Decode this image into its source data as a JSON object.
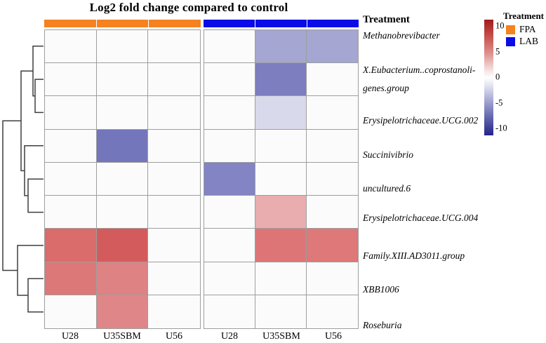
{
  "chart_data": {
    "type": "heatmap",
    "title": "Log2 fold change compared to control",
    "annotation_label": "Treatment",
    "columns": [
      "U28",
      "U35SBM",
      "U56",
      "U28",
      "U35SBM",
      "U56"
    ],
    "column_groups": [
      {
        "name": "FPA",
        "columns": [
          0,
          1,
          2
        ],
        "color": "#F58220"
      },
      {
        "name": "LAB",
        "columns": [
          3,
          4,
          5
        ],
        "color": "#0B0BE8"
      }
    ],
    "rows": [
      "Methanobrevibacter",
      "X.Eubacterium..coprostanoli-\ngenes.group",
      "Erysipelotrichaceae.UCG.002",
      "Succinivibrio",
      "uncultured.6",
      "Erysipelotrichaceae.UCG.004",
      "Family.XIII.AD3011.group",
      "XBB1006",
      "Roseburia"
    ],
    "value_range": [
      -10,
      10
    ],
    "values": [
      [
        0,
        0,
        0,
        0,
        -4,
        -4
      ],
      [
        0,
        0,
        0,
        0,
        -6,
        0
      ],
      [
        0,
        0,
        0,
        0,
        -2,
        0
      ],
      [
        0,
        -6.5,
        0,
        0,
        0,
        0
      ],
      [
        0,
        0,
        0,
        -6,
        0,
        0
      ],
      [
        0,
        0,
        0,
        0,
        3.5,
        0
      ],
      [
        6.5,
        7,
        0,
        0,
        6,
        6
      ],
      [
        6,
        5.5,
        0,
        0,
        0,
        0
      ],
      [
        0,
        5.3,
        0,
        0,
        0,
        0
      ]
    ],
    "na_color": "#FBFBFB",
    "cell_colors": [
      [
        "#FBFBFB",
        "#FBFBFB",
        "#FBFBFB",
        "#FBFBFB",
        "#A5A6D2",
        "#A5A6D2"
      ],
      [
        "#FBFBFB",
        "#FBFBFB",
        "#FBFBFB",
        "#FBFBFB",
        "#7C7EC0",
        "#FBFBFB"
      ],
      [
        "#FBFBFB",
        "#FBFBFB",
        "#FBFBFB",
        "#FBFBFB",
        "#D9D9EC",
        "#FBFBFB"
      ],
      [
        "#FBFBFB",
        "#7476BC",
        "#FBFBFB",
        "#FBFBFB",
        "#FBFBFB",
        "#FBFBFB"
      ],
      [
        "#FBFBFB",
        "#FBFBFB",
        "#FBFBFB",
        "#8284C4",
        "#FBFBFB",
        "#FBFBFB"
      ],
      [
        "#FBFBFB",
        "#FBFBFB",
        "#FBFBFB",
        "#FBFBFB",
        "#E9ACAF",
        "#FBFBFB"
      ],
      [
        "#DA6C6C",
        "#D45B5B",
        "#FBFBFB",
        "#FBFBFB",
        "#DD7577",
        "#DE7879"
      ],
      [
        "#DC7878",
        "#DE8283",
        "#FBFBFB",
        "#FBFBFB",
        "#FBFBFB",
        "#FBFBFB"
      ],
      [
        "#FBFBFB",
        "#DF8688",
        "#FBFBFB",
        "#FBFBFB",
        "#FBFBFB",
        "#FBFBFB"
      ]
    ],
    "colorbar": {
      "ticks": [
        "10",
        "5",
        "0",
        "-5",
        "-10"
      ],
      "gradient_stops": [
        [
          "#A01B1F",
          0
        ],
        [
          "#C24743",
          12
        ],
        [
          "#DE8A86",
          28
        ],
        [
          "#F5E3E2",
          44
        ],
        [
          "#FFFFFF",
          50
        ],
        [
          "#E3E3F1",
          57
        ],
        [
          "#9B9DCE",
          72
        ],
        [
          "#5D5FA9",
          86
        ],
        [
          "#24248A",
          100
        ]
      ]
    },
    "legend": {
      "title": "Treatment",
      "entries": [
        {
          "label": "FPA",
          "color": "#F58220"
        },
        {
          "label": "LAB",
          "color": "#0B0BE8"
        }
      ]
    },
    "dendrogram_polylines": [
      [
        [
          62,
          113.1
        ],
        [
          50,
          113.1
        ],
        [
          50,
          160.4
        ],
        [
          62,
          160.4
        ]
      ],
      [
        [
          62,
          65.7
        ],
        [
          47,
          65.7
        ],
        [
          47,
          136.8
        ],
        [
          50,
          136.8
        ]
      ],
      [
        [
          62,
          255.2
        ],
        [
          40,
          255.2
        ],
        [
          40,
          302.6
        ],
        [
          62,
          302.6
        ]
      ],
      [
        [
          62,
          207.8
        ],
        [
          35,
          207.8
        ],
        [
          35,
          278.9
        ],
        [
          40,
          278.9
        ]
      ],
      [
        [
          47,
          101.2
        ],
        [
          30,
          101.2
        ],
        [
          30,
          243.4
        ],
        [
          35,
          243.4
        ]
      ],
      [
        [
          62,
          397.3
        ],
        [
          40,
          397.3
        ],
        [
          40,
          444.7
        ],
        [
          62,
          444.7
        ]
      ],
      [
        [
          62,
          349.9
        ],
        [
          25,
          349.9
        ],
        [
          25,
          421.0
        ],
        [
          40,
          421.0
        ]
      ],
      [
        [
          30,
          172.3
        ],
        [
          4,
          172.3
        ],
        [
          4,
          385.5
        ],
        [
          25,
          385.5
        ]
      ]
    ]
  }
}
